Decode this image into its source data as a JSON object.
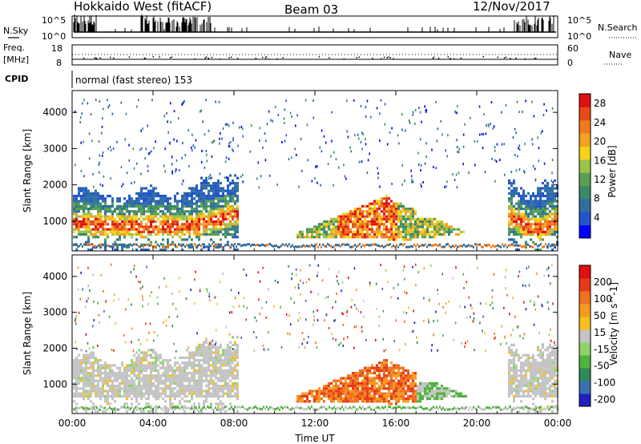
{
  "header": {
    "radar": "Hokkaido West (fitACF)",
    "beam": "Beam 03",
    "date": "12/Nov/2017"
  },
  "top_strip": {
    "left_labels": {
      "nsky": "N.Sky",
      "freq": "Freq.",
      "freq_unit": "[MHz]",
      "cpid": "CPID"
    },
    "right_labels": {
      "nsearch": "N.Search",
      "nave": "Nave"
    },
    "noise_ticks_left": [
      "10^5",
      "10^0"
    ],
    "noise_ticks_right": [
      "10^5",
      "10^0"
    ],
    "freq_ticks": [
      "18",
      "8"
    ],
    "nave_ticks": [
      "60",
      "0"
    ],
    "cpid_text": "normal (fast stereo) 153"
  },
  "chart_data": [
    {
      "type": "heatmap",
      "panel": "power",
      "xlabel": "",
      "ylabel": "Slant Range [km]",
      "x_ticks": [
        "00:00",
        "04:00",
        "08:00",
        "12:00",
        "16:00",
        "20:00",
        "00:00"
      ],
      "xlim_hours": [
        0,
        24
      ],
      "y_ticks": [
        1000,
        2000,
        3000,
        4000
      ],
      "ylim": [
        180,
        4600
      ],
      "colorbar": {
        "label": "Power [dB]",
        "ticks": [
          "4",
          "8",
          "12",
          "16",
          "20",
          "24",
          "28"
        ],
        "colors": [
          "#0000ff",
          "#2255cc",
          "#2f6f9f",
          "#3a8a6a",
          "#5aa050",
          "#9cc24a",
          "#f5d31a",
          "#f5a223",
          "#f07a1c",
          "#ea4a17",
          "#e01010"
        ]
      }
    },
    {
      "type": "heatmap",
      "panel": "velocity",
      "xlabel": "Time UT",
      "ylabel": "Slant Range [km]",
      "x_ticks": [
        "00:00",
        "04:00",
        "08:00",
        "12:00",
        "16:00",
        "20:00",
        "00:00"
      ],
      "xlim_hours": [
        0,
        24
      ],
      "y_ticks": [
        1000,
        2000,
        3000,
        4000
      ],
      "ylim": [
        180,
        4600
      ],
      "colorbar": {
        "label": "Velocity [m s^-1]",
        "ticks": [
          "200",
          "100",
          "50",
          "15",
          "-15",
          "-50",
          "-100",
          "-200"
        ],
        "colors": [
          "#2020c0",
          "#3a6fb0",
          "#2e8a5a",
          "#4fb43c",
          "#8fd46a",
          "#c4c4c4",
          "#f5c020",
          "#f59a20",
          "#f07020",
          "#e83a18",
          "#e01010"
        ]
      }
    }
  ]
}
